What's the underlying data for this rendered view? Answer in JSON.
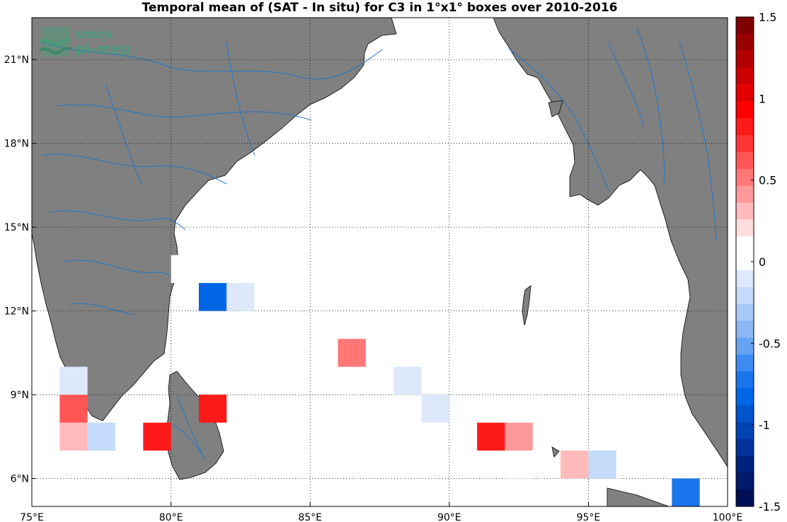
{
  "title": "Temporal mean of (SAT - In situ) for C3 in 1°x1° boxes over 2010-2016",
  "logo": {
    "line1": "smos",
    "line2": "pi-mep",
    "icon": "waves-logo-icon"
  },
  "map": {
    "lon_range": [
      75,
      100
    ],
    "lat_range": [
      5,
      22.5
    ],
    "land_color": "#808080",
    "ocean_color": "#ffffff",
    "river_color": "#1f77c8",
    "grid": true,
    "lon_ticks": [
      {
        "value": 75,
        "label": "75°E"
      },
      {
        "value": 80,
        "label": "80°E"
      },
      {
        "value": 85,
        "label": "85°E"
      },
      {
        "value": 90,
        "label": "90°E"
      },
      {
        "value": 95,
        "label": "95°E"
      },
      {
        "value": 100,
        "label": "100°E"
      }
    ],
    "lat_ticks": [
      {
        "value": 6,
        "label": "6°N"
      },
      {
        "value": 9,
        "label": "9°N"
      },
      {
        "value": 12,
        "label": "12°N"
      },
      {
        "value": 15,
        "label": "15°N"
      },
      {
        "value": 18,
        "label": "18°N"
      },
      {
        "value": 21,
        "label": "21°N"
      }
    ],
    "cells": [
      {
        "lon": 80,
        "lat": 13,
        "value": 0.15
      },
      {
        "lon": 81,
        "lat": 12,
        "value": -0.8
      },
      {
        "lon": 82,
        "lat": 12,
        "value": -0.15
      },
      {
        "lon": 86,
        "lat": 10,
        "value": 0.55
      },
      {
        "lon": 76,
        "lat": 8,
        "value": 0.65
      },
      {
        "lon": 76,
        "lat": 9,
        "value": -0.1
      },
      {
        "lon": 76,
        "lat": 7,
        "value": 0.35
      },
      {
        "lon": 77,
        "lat": 7,
        "value": -0.25
      },
      {
        "lon": 79,
        "lat": 7,
        "value": 0.85
      },
      {
        "lon": 81,
        "lat": 8,
        "value": 0.85
      },
      {
        "lon": 88,
        "lat": 9,
        "value": -0.1
      },
      {
        "lon": 89,
        "lat": 8,
        "value": -0.1
      },
      {
        "lon": 91,
        "lat": 7,
        "value": 0.85
      },
      {
        "lon": 92,
        "lat": 7,
        "value": 0.45
      },
      {
        "lon": 92,
        "lat": 6,
        "value": 0.15
      },
      {
        "lon": 94,
        "lat": 6,
        "value": 0.35
      },
      {
        "lon": 95,
        "lat": 6,
        "value": -0.25
      },
      {
        "lon": 98,
        "lat": 5,
        "value": -0.75
      }
    ]
  },
  "colorbar": {
    "range": [
      -1.5,
      1.5
    ],
    "ticks": [
      {
        "value": 1.5,
        "label": "1.5"
      },
      {
        "value": 1,
        "label": "1"
      },
      {
        "value": 0.5,
        "label": "0.5"
      },
      {
        "value": 0,
        "label": "0"
      },
      {
        "value": -0.5,
        "label": "-0.5"
      },
      {
        "value": -1,
        "label": "-1"
      },
      {
        "value": -1.5,
        "label": "-1.5"
      }
    ],
    "colors_top_to_bottom": [
      "#7f0000",
      "#990000",
      "#b20000",
      "#cc0000",
      "#e50000",
      "#ff0000",
      "#ff1a1a",
      "#ff3333",
      "#ff5555",
      "#ff7777",
      "#ff9999",
      "#ffbbbb",
      "#ffdddd",
      "#ffffff",
      "#ffffff",
      "#dde9fb",
      "#c4daf9",
      "#a8c9f7",
      "#8bb8f5",
      "#66a3f3",
      "#3d8bf0",
      "#1a75ec",
      "#0066e5",
      "#0055cc",
      "#0044b2",
      "#003399",
      "#00227f",
      "#001a6b",
      "#000f55"
    ]
  }
}
